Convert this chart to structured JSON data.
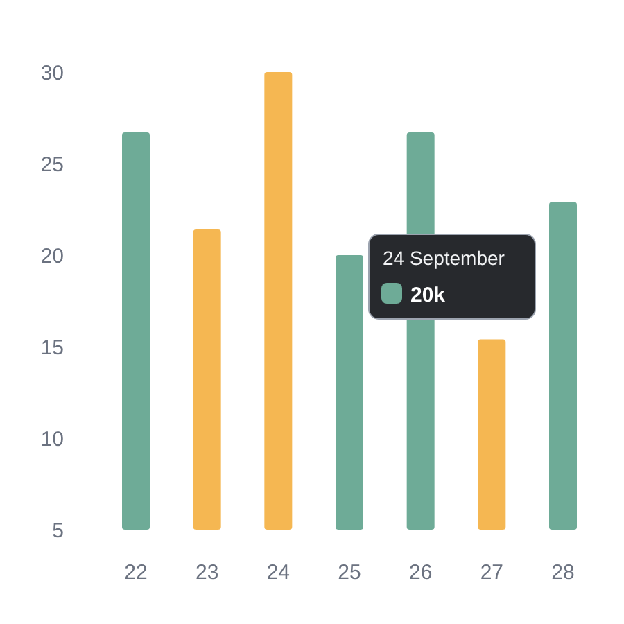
{
  "chart_data": {
    "type": "bar",
    "categories": [
      "22",
      "23",
      "24",
      "25",
      "26",
      "27",
      "28"
    ],
    "values": [
      26.7,
      21.4,
      30,
      20,
      26.7,
      15.4,
      22.9
    ],
    "colors": [
      "#6eab97",
      "#f5b752",
      "#f5b752",
      "#6eab97",
      "#6eab97",
      "#f5b752",
      "#6eab97"
    ],
    "ylim": [
      5,
      30
    ],
    "yticks": [
      5,
      10,
      15,
      20,
      25,
      30
    ],
    "grid": false,
    "annotations": [
      "24 September",
      "20k"
    ]
  }
}
